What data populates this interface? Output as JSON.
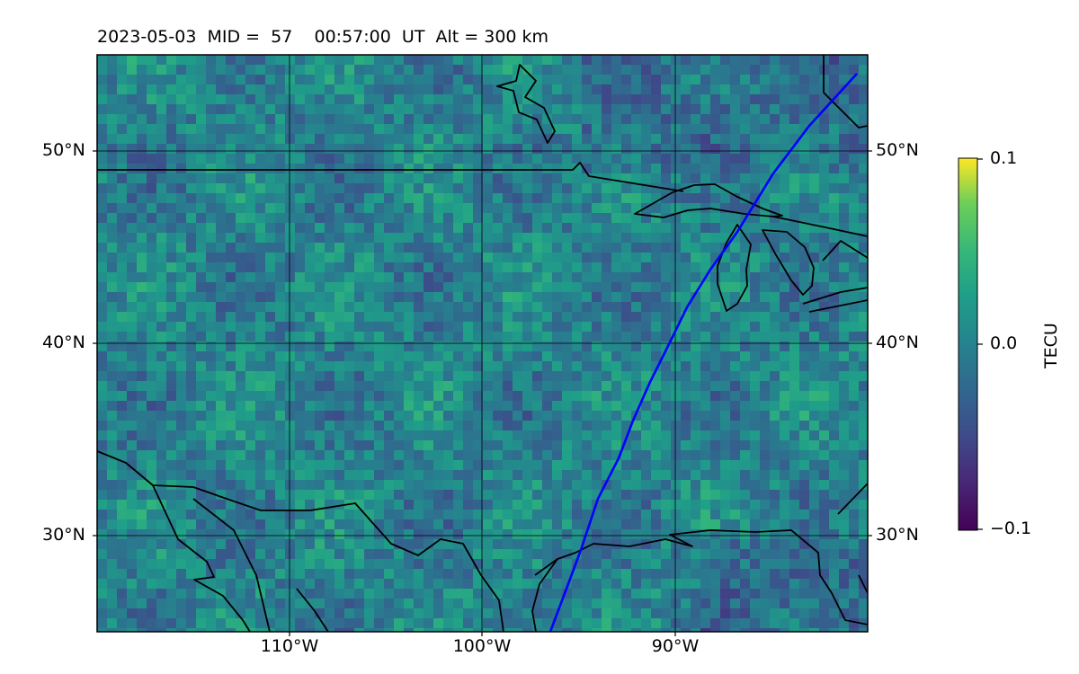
{
  "map": {
    "title": "2023-05-03  MID =  57    00:57:00  UT  Alt = 300 km",
    "lat_labels": [
      "50°N",
      "40°N",
      "30°N"
    ],
    "lon_labels": [
      "110°W",
      "100°W",
      "90°W"
    ],
    "colorbar": {
      "label": "TECU",
      "ticks": [
        "0.1",
        "0.0",
        "−0.1"
      ],
      "colormap": "viridis",
      "range": [
        -0.1,
        0.1
      ]
    },
    "track_color": "#0000ff",
    "extent": {
      "lon": [
        -120,
        -80
      ],
      "lat": [
        25,
        55
      ]
    }
  }
}
